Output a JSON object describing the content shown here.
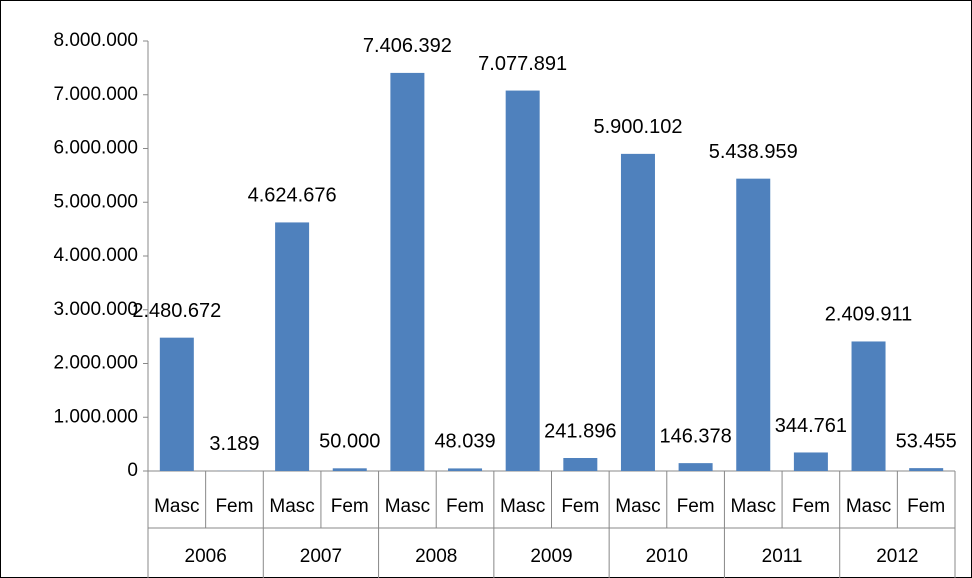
{
  "chart_data": {
    "type": "bar",
    "categories": [
      "Masc",
      "Fem",
      "Masc",
      "Fem",
      "Masc",
      "Fem",
      "Masc",
      "Fem",
      "Masc",
      "Fem",
      "Masc",
      "Fem",
      "Masc",
      "Fem"
    ],
    "groups": [
      "2006",
      "2007",
      "2008",
      "2009",
      "2010",
      "2011",
      "2012"
    ],
    "values": [
      2480672,
      3189,
      4624676,
      50000,
      7406392,
      48039,
      7077891,
      241896,
      5900102,
      146378,
      5438959,
      344761,
      2409911,
      53455
    ],
    "value_labels": [
      "2.480.672",
      "3.189",
      "4.624.676",
      "50.000",
      "7.406.392",
      "48.039",
      "7.077.891",
      "241.896",
      "5.900.102",
      "146.378",
      "5.438.959",
      "344.761",
      "2.409.911",
      "53.455"
    ],
    "color": "#4f81bd",
    "ylim": [
      0,
      8000000
    ],
    "yticks": [
      0,
      {
        "value": 1000000,
        "label": "1.000.000"
      },
      {
        "value": 2000000,
        "label": "2.000.000"
      },
      {
        "value": 3000000,
        "label": "3.000.000"
      },
      {
        "value": 4000000,
        "label": "4.000.000"
      },
      {
        "value": 5000000,
        "label": "5.000.000"
      },
      {
        "value": 6000000,
        "label": "6.000.000"
      },
      {
        "value": 7000000,
        "label": "7.000.000"
      },
      {
        "value": 8000000,
        "label": "8.000.000"
      }
    ],
    "grid": false
  }
}
